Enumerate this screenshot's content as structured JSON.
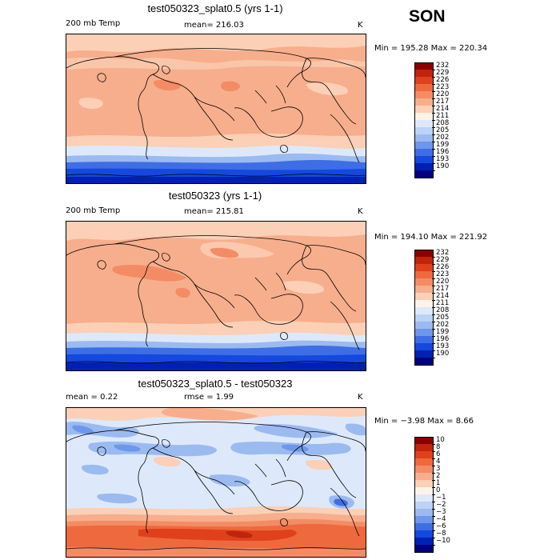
{
  "season": "SON",
  "panels": [
    {
      "title": "test050323_splat0.5 (yrs 1-1)",
      "left_label": "200 mb Temp",
      "center_label": "mean= 216.03",
      "units": "K",
      "minmax": "Min = 195.28  Max = 220.34",
      "colorbar": {
        "labels": [
          "232",
          "229",
          "226",
          "223",
          "220",
          "217",
          "214",
          "211",
          "208",
          "205",
          "202",
          "199",
          "196",
          "193",
          "190"
        ],
        "colors": [
          "#8b0000",
          "#c0240b",
          "#e0401c",
          "#ee6a3e",
          "#f38c64",
          "#f7ae8c",
          "#fbd0b6",
          "#fff3e8",
          "#dde9fb",
          "#bcd3f7",
          "#9bbaf0",
          "#6e96ea",
          "#3e6ee6",
          "#1448de",
          "#0020b4",
          "#000080"
        ]
      }
    },
    {
      "title": "test050323 (yrs 1-1)",
      "left_label": "200 mb Temp",
      "center_label": "mean= 215.81",
      "units": "K",
      "minmax": "Min = 194.10  Max = 221.92",
      "colorbar": {
        "labels": [
          "232",
          "229",
          "226",
          "223",
          "220",
          "217",
          "214",
          "211",
          "208",
          "205",
          "202",
          "199",
          "196",
          "193",
          "190"
        ],
        "colors": [
          "#8b0000",
          "#c0240b",
          "#e0401c",
          "#ee6a3e",
          "#f38c64",
          "#f7ae8c",
          "#fbd0b6",
          "#fff3e8",
          "#dde9fb",
          "#bcd3f7",
          "#9bbaf0",
          "#6e96ea",
          "#3e6ee6",
          "#1448de",
          "#0020b4",
          "#000080"
        ]
      }
    },
    {
      "title": "test050323_splat0.5 - test050323",
      "left_label": "mean =    0.22",
      "center_label": "rmse =    1.99",
      "units": "K",
      "minmax": "Min = −3.98  Max =   8.66",
      "colorbar": {
        "labels": [
          "10",
          "8",
          "6",
          "4",
          "3",
          "2",
          "1",
          "0",
          "−1",
          "−2",
          "−3",
          "−4",
          "−6",
          "−8",
          "−10"
        ],
        "colors": [
          "#8b0000",
          "#c0240b",
          "#e0401c",
          "#ee6a3e",
          "#f38c64",
          "#f7ae8c",
          "#fbd0b6",
          "#fff3e8",
          "#dde9fb",
          "#bcd3f7",
          "#9bbaf0",
          "#6e96ea",
          "#3e6ee6",
          "#1448de",
          "#0020b4",
          "#000080"
        ]
      }
    }
  ]
}
